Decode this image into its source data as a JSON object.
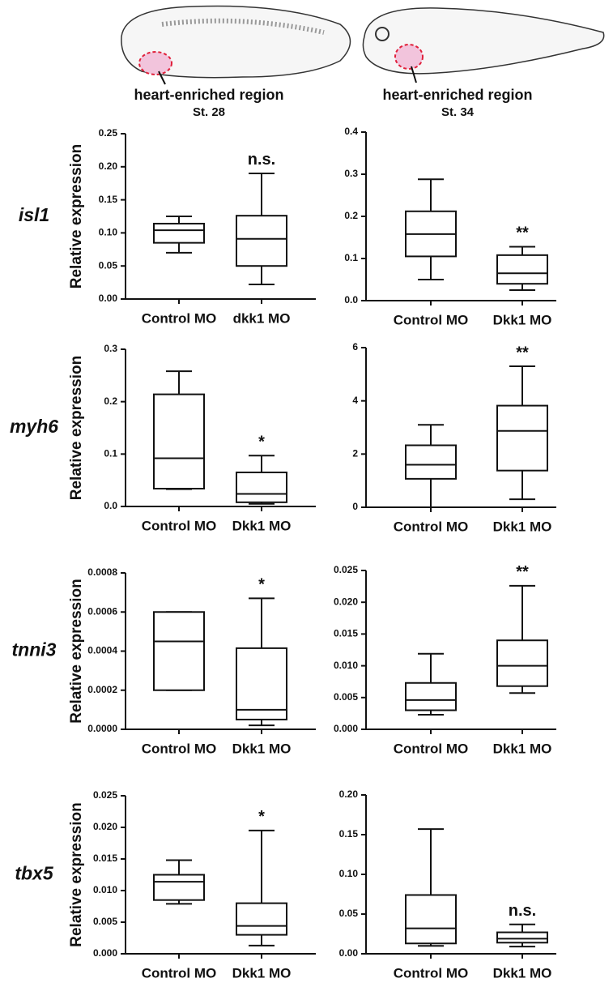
{
  "header": {
    "panels": [
      {
        "label": "heart-enriched region",
        "stage": "St. 28"
      },
      {
        "label": "heart-enriched region",
        "stage": "St. 34"
      }
    ]
  },
  "chart_data": [
    {
      "type": "box",
      "gene": "isl1",
      "ylabel": "Relative expression",
      "categories": [
        "Control MO",
        "dkk1 MO"
      ],
      "boxes": [
        {
          "min": 0.07,
          "q1": 0.085,
          "median": 0.104,
          "q3": 0.114,
          "max": 0.125
        },
        {
          "min": 0.022,
          "q1": 0.05,
          "median": 0.091,
          "q3": 0.126,
          "max": 0.19
        }
      ],
      "annotations": [
        null,
        "n.s."
      ],
      "ylim": [
        0,
        0.25
      ],
      "yticks": [
        {
          "value": 0,
          "label": "0.00"
        },
        0.05,
        {
          "value": 0.1,
          "label": "0.10"
        },
        0.15,
        {
          "value": 0.2,
          "label": "0.20"
        },
        0.25
      ]
    },
    {
      "type": "box",
      "categories": [
        "Control MO",
        "Dkk1 MO"
      ],
      "boxes": [
        {
          "min": 0.05,
          "q1": 0.105,
          "median": 0.158,
          "q3": 0.212,
          "max": 0.288
        },
        {
          "min": 0.025,
          "q1": 0.04,
          "median": 0.065,
          "q3": 0.108,
          "max": 0.128
        }
      ],
      "annotations": [
        null,
        "**"
      ],
      "ylim": [
        0,
        0.4
      ],
      "yticks": [
        {
          "value": 0,
          "label": "0.0"
        },
        0.1,
        0.2,
        0.3,
        0.4
      ]
    },
    {
      "type": "box",
      "gene": "myh6",
      "ylabel": "Relative expression",
      "categories": [
        "Control MO",
        "Dkk1 MO"
      ],
      "boxes": [
        {
          "min": 0.033,
          "q1": 0.034,
          "median": 0.092,
          "q3": 0.214,
          "max": 0.258
        },
        {
          "min": 0.005,
          "q1": 0.008,
          "median": 0.024,
          "q3": 0.065,
          "max": 0.097
        }
      ],
      "annotations": [
        null,
        "*"
      ],
      "ylim": [
        0,
        0.3
      ],
      "yticks": [
        {
          "value": 0,
          "label": "0.0"
        },
        0.1,
        0.2,
        0.3
      ]
    },
    {
      "type": "box",
      "categories": [
        "Control MO",
        "Dkk1 MO"
      ],
      "boxes": [
        {
          "min": 0,
          "q1": 1.07,
          "median": 1.6,
          "q3": 2.33,
          "max": 3.1
        },
        {
          "min": 0.3,
          "q1": 1.38,
          "median": 2.87,
          "q3": 3.82,
          "max": 5.3
        }
      ],
      "annotations": [
        null,
        "**"
      ],
      "ylim": [
        0,
        6
      ],
      "yticks": [
        0,
        2,
        4,
        6
      ]
    },
    {
      "type": "box",
      "gene": "tnni3",
      "ylabel": "Relative expression",
      "categories": [
        "Control MO",
        "Dkk1 MO"
      ],
      "boxes": [
        {
          "min": 0.0002,
          "q1": 0.0002,
          "median": 0.00045,
          "q3": 0.0006,
          "max": 0.0006
        },
        {
          "min": 2e-05,
          "q1": 5e-05,
          "median": 0.0001,
          "q3": 0.000415,
          "max": 0.00067
        }
      ],
      "annotations": [
        null,
        "*"
      ],
      "ylim": [
        0,
        0.0008
      ],
      "yticks": [
        {
          "value": 0,
          "label": "0.0000"
        },
        0.0002,
        0.0004,
        0.0006,
        0.0008
      ]
    },
    {
      "type": "box",
      "categories": [
        "Control MO",
        "Dkk1 MO"
      ],
      "boxes": [
        {
          "min": 0.0023,
          "q1": 0.003,
          "median": 0.0046,
          "q3": 0.0073,
          "max": 0.0119
        },
        {
          "min": 0.0057,
          "q1": 0.0068,
          "median": 0.01,
          "q3": 0.014,
          "max": 0.0226
        }
      ],
      "annotations": [
        null,
        "**"
      ],
      "ylim": [
        0,
        0.025
      ],
      "yticks": [
        {
          "value": 0,
          "label": "0.000"
        },
        0.005,
        {
          "value": 0.01,
          "label": "0.010"
        },
        0.015,
        {
          "value": 0.02,
          "label": "0.020"
        },
        0.025
      ]
    },
    {
      "type": "box",
      "gene": "tbx5",
      "ylabel": "Relative expression",
      "categories": [
        "Control MO",
        "Dkk1 MO"
      ],
      "boxes": [
        {
          "min": 0.0079,
          "q1": 0.0085,
          "median": 0.0114,
          "q3": 0.0125,
          "max": 0.0148
        },
        {
          "min": 0.0013,
          "q1": 0.003,
          "median": 0.0044,
          "q3": 0.008,
          "max": 0.0195
        }
      ],
      "annotations": [
        null,
        "*"
      ],
      "ylim": [
        0,
        0.025
      ],
      "yticks": [
        {
          "value": 0,
          "label": "0.000"
        },
        0.005,
        {
          "value": 0.01,
          "label": "0.010"
        },
        0.015,
        {
          "value": 0.02,
          "label": "0.020"
        },
        0.025
      ]
    },
    {
      "type": "box",
      "categories": [
        "Control MO",
        "Dkk1 MO"
      ],
      "boxes": [
        {
          "min": 0.01,
          "q1": 0.013,
          "median": 0.032,
          "q3": 0.074,
          "max": 0.157
        },
        {
          "min": 0.009,
          "q1": 0.014,
          "median": 0.019,
          "q3": 0.027,
          "max": 0.037
        }
      ],
      "annotations": [
        null,
        "n.s."
      ],
      "ylim": [
        0,
        0.2
      ],
      "yticks": [
        {
          "value": 0,
          "label": "0.00"
        },
        0.05,
        {
          "value": 0.1,
          "label": "0.10"
        },
        0.15,
        {
          "value": 0.2,
          "label": "0.20"
        }
      ]
    }
  ]
}
